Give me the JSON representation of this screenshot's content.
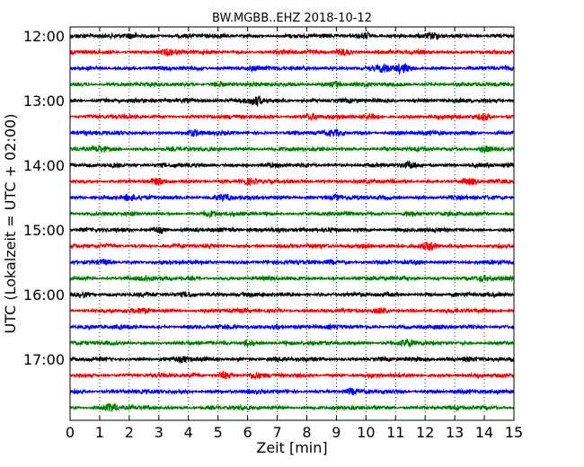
{
  "chart_data": {
    "type": "line",
    "title": "BW.MGBB..EHZ 2018-10-12",
    "xlabel": "Zeit  [min]",
    "ylabel": "UTC (Lokalzeit = UTC + 02:00)",
    "xlim": [
      0,
      15
    ],
    "x_ticks": [
      "0",
      "1",
      "2",
      "3",
      "4",
      "5",
      "6",
      "7",
      "8",
      "9",
      "10",
      "11",
      "12",
      "13",
      "14",
      "15"
    ],
    "y_ticks": [
      "12:00",
      "13:00",
      "14:00",
      "15:00",
      "16:00",
      "17:00"
    ],
    "grid": "vertical dotted",
    "trace_interval_min": 15,
    "trace_colors": [
      "#000000",
      "#ff0000",
      "#0000ff",
      "#008000"
    ],
    "traces": [
      {
        "start": "12:00",
        "color": "#000000",
        "events": [
          {
            "t": 2.1,
            "amp": 1.5
          },
          {
            "t": 10.0,
            "amp": 1.6
          },
          {
            "t": 12.3,
            "amp": 1.2
          }
        ]
      },
      {
        "start": "12:15",
        "color": "#ff0000",
        "events": [
          {
            "t": 3.3,
            "amp": 1.3
          },
          {
            "t": 9.2,
            "amp": 1.8
          }
        ]
      },
      {
        "start": "12:30",
        "color": "#0000ff",
        "events": [
          {
            "t": 10.6,
            "amp": 2.0
          },
          {
            "t": 11.2,
            "amp": 2.2
          },
          {
            "t": 6.2,
            "amp": 1.2
          }
        ]
      },
      {
        "start": "12:45",
        "color": "#008000",
        "events": [
          {
            "t": 9.0,
            "amp": 1.4
          },
          {
            "t": 5.0,
            "amp": 1.1
          }
        ]
      },
      {
        "start": "13:00",
        "color": "#000000",
        "events": [
          {
            "t": 6.3,
            "amp": 2.2
          },
          {
            "t": 4.0,
            "amp": 1.3
          }
        ]
      },
      {
        "start": "13:15",
        "color": "#ff0000",
        "events": [
          {
            "t": 8.2,
            "amp": 1.3
          },
          {
            "t": 10.2,
            "amp": 1.3
          },
          {
            "t": 14.0,
            "amp": 1.6
          }
        ]
      },
      {
        "start": "13:30",
        "color": "#0000ff",
        "events": [
          {
            "t": 4.2,
            "amp": 1.2
          },
          {
            "t": 9.0,
            "amp": 1.2
          }
        ]
      },
      {
        "start": "13:45",
        "color": "#008000",
        "events": [
          {
            "t": 1.0,
            "amp": 1.3
          },
          {
            "t": 14.0,
            "amp": 1.4
          }
        ]
      },
      {
        "start": "14:00",
        "color": "#000000",
        "events": [
          {
            "t": 1.5,
            "amp": 1.2
          },
          {
            "t": 11.5,
            "amp": 1.2
          }
        ]
      },
      {
        "start": "14:15",
        "color": "#ff0000",
        "events": [
          {
            "t": 3.0,
            "amp": 1.2
          },
          {
            "t": 6.0,
            "amp": 1.3
          },
          {
            "t": 13.5,
            "amp": 1.2
          }
        ]
      },
      {
        "start": "14:30",
        "color": "#0000ff",
        "events": [
          {
            "t": 2.0,
            "amp": 1.5
          },
          {
            "t": 5.2,
            "amp": 1.8
          },
          {
            "t": 9.0,
            "amp": 1.3
          }
        ]
      },
      {
        "start": "14:45",
        "color": "#008000",
        "events": [
          {
            "t": 4.8,
            "amp": 1.3
          },
          {
            "t": 11.5,
            "amp": 1.2
          }
        ]
      },
      {
        "start": "15:00",
        "color": "#000000",
        "events": [
          {
            "t": 3.0,
            "amp": 1.4
          },
          {
            "t": 7.0,
            "amp": 1.2
          }
        ]
      },
      {
        "start": "15:15",
        "color": "#ff0000",
        "events": [
          {
            "t": 10.0,
            "amp": 1.3
          },
          {
            "t": 12.2,
            "amp": 1.8
          }
        ]
      },
      {
        "start": "15:30",
        "color": "#0000ff",
        "events": [
          {
            "t": 1.2,
            "amp": 1.2
          },
          {
            "t": 8.8,
            "amp": 1.2
          }
        ]
      },
      {
        "start": "15:45",
        "color": "#008000",
        "events": [
          {
            "t": 2.5,
            "amp": 1.2
          },
          {
            "t": 14.0,
            "amp": 1.2
          }
        ]
      },
      {
        "start": "16:00",
        "color": "#000000",
        "events": [
          {
            "t": 0.5,
            "amp": 1.2
          },
          {
            "t": 4.0,
            "amp": 1.3
          }
        ]
      },
      {
        "start": "16:15",
        "color": "#ff0000",
        "events": [
          {
            "t": 2.5,
            "amp": 1.1
          },
          {
            "t": 10.5,
            "amp": 1.1
          }
        ]
      },
      {
        "start": "16:30",
        "color": "#0000ff",
        "events": [
          {
            "t": 7.0,
            "amp": 1.1
          }
        ]
      },
      {
        "start": "16:45",
        "color": "#008000",
        "events": [
          {
            "t": 11.4,
            "amp": 2.0
          },
          {
            "t": 6.0,
            "amp": 1.2
          }
        ]
      },
      {
        "start": "17:00",
        "color": "#000000",
        "events": [
          {
            "t": 13.5,
            "amp": 1.3
          },
          {
            "t": 3.8,
            "amp": 1.1
          }
        ]
      },
      {
        "start": "17:15",
        "color": "#ff0000",
        "events": [
          {
            "t": 5.2,
            "amp": 1.8
          },
          {
            "t": 6.2,
            "amp": 1.6
          }
        ]
      },
      {
        "start": "17:30",
        "color": "#0000ff",
        "events": [
          {
            "t": 9.5,
            "amp": 1.2
          }
        ]
      },
      {
        "start": "17:45",
        "color": "#008000",
        "events": [
          {
            "t": 1.4,
            "amp": 2.0
          }
        ]
      }
    ]
  }
}
